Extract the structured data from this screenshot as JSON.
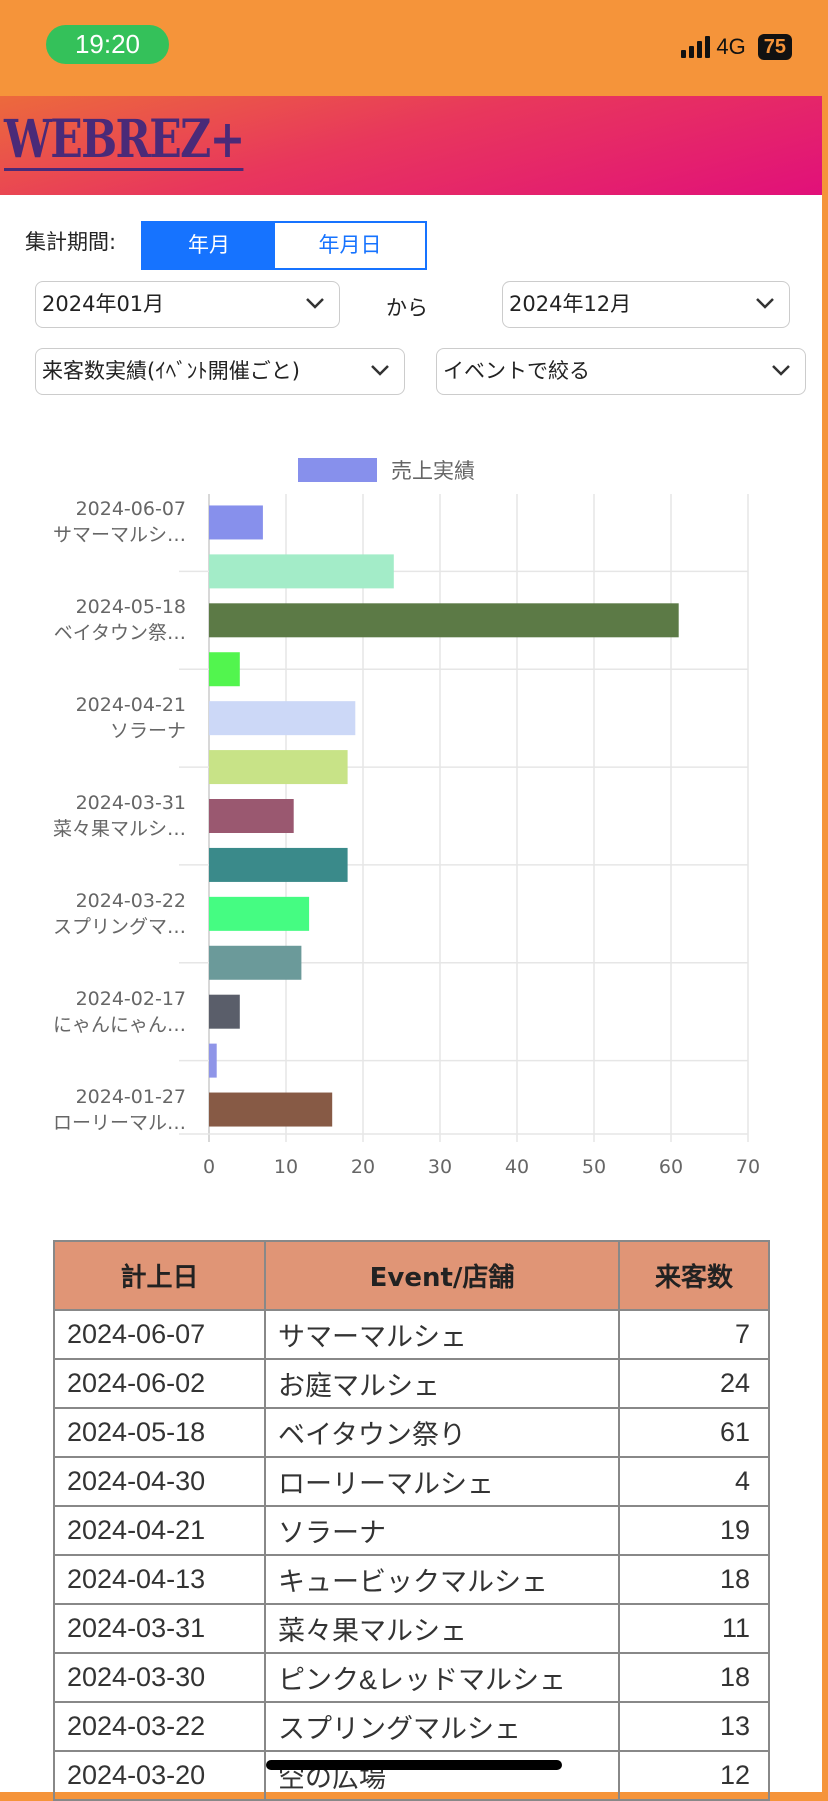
{
  "status": {
    "time": "19:20",
    "network": "4G",
    "battery": "75"
  },
  "header": {
    "logo": "WEBREZ+"
  },
  "filters": {
    "period_label": "集計期間:",
    "seg_ym": "年月",
    "seg_ymd": "年月日",
    "from": "2024年01月",
    "from_to": "から",
    "to": "2024年12月",
    "metric": "来客数実績(ｲﾍﾞﾝﾄ開催ごと)",
    "event_filter": "イベントで絞る"
  },
  "chart_data": {
    "type": "bar",
    "orientation": "horizontal",
    "legend": "売上実績",
    "legend_color": "#8790EC",
    "legend_position": "top",
    "labels": [
      [
        "2024-06-07",
        "サマーマルシ…"
      ],
      [
        "",
        ""
      ],
      [
        "2024-05-18",
        "ベイタウン祭…"
      ],
      [
        "",
        ""
      ],
      [
        "2024-04-21",
        "ソラーナ"
      ],
      [
        "",
        ""
      ],
      [
        "2024-03-31",
        "菜々果マルシ…"
      ],
      [
        "",
        ""
      ],
      [
        "2024-03-22",
        "スプリングマ…"
      ],
      [
        "",
        ""
      ],
      [
        "2024-02-17",
        "にゃんにゃん…"
      ],
      [
        "",
        ""
      ],
      [
        "2024-01-27",
        "ローリーマル…"
      ]
    ],
    "values": [
      7,
      24,
      61,
      4,
      19,
      18,
      11,
      18,
      13,
      12,
      4,
      1,
      16
    ],
    "colors": [
      "#8790EC",
      "#A3ECC8",
      "#5C7A46",
      "#52F54E",
      "#CCD8F7",
      "#C8E387",
      "#9A5870",
      "#3A8A8A",
      "#45FC82",
      "#6B9A9A",
      "#5A5E6A",
      "#8F95E8",
      "#875A45"
    ],
    "xlim": [
      0,
      70
    ],
    "xticks": [
      0,
      10,
      20,
      30,
      40,
      50,
      60,
      70
    ],
    "grid": true
  },
  "table": {
    "headers": [
      "計上日",
      "Event/店舗",
      "来客数"
    ],
    "rows": [
      [
        "2024-06-07",
        "サマーマルシェ",
        "7"
      ],
      [
        "2024-06-02",
        "お庭マルシェ",
        "24"
      ],
      [
        "2024-05-18",
        "ベイタウン祭り",
        "61"
      ],
      [
        "2024-04-30",
        "ローリーマルシェ",
        "4"
      ],
      [
        "2024-04-21",
        "ソラーナ",
        "19"
      ],
      [
        "2024-04-13",
        "キュービックマルシェ",
        "18"
      ],
      [
        "2024-03-31",
        "菜々果マルシェ",
        "11"
      ],
      [
        "2024-03-30",
        "ピンク&レッドマルシェ",
        "18"
      ],
      [
        "2024-03-22",
        "スプリングマルシェ",
        "13"
      ],
      [
        "2024-03-20",
        "空の広場",
        "12"
      ]
    ]
  }
}
